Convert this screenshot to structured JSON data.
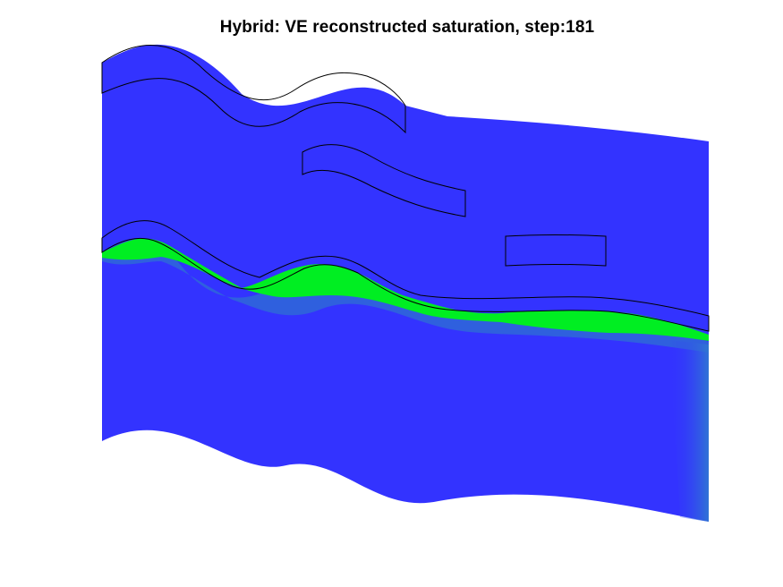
{
  "title": "Hybrid: VE reconstructed saturation, step:181",
  "colors": {
    "background": "#ffffff",
    "domain_fill": "#3333ff",
    "co2_plume": "#00ee22",
    "plume_transition": "#2f68d8",
    "outline": "#000000"
  }
}
